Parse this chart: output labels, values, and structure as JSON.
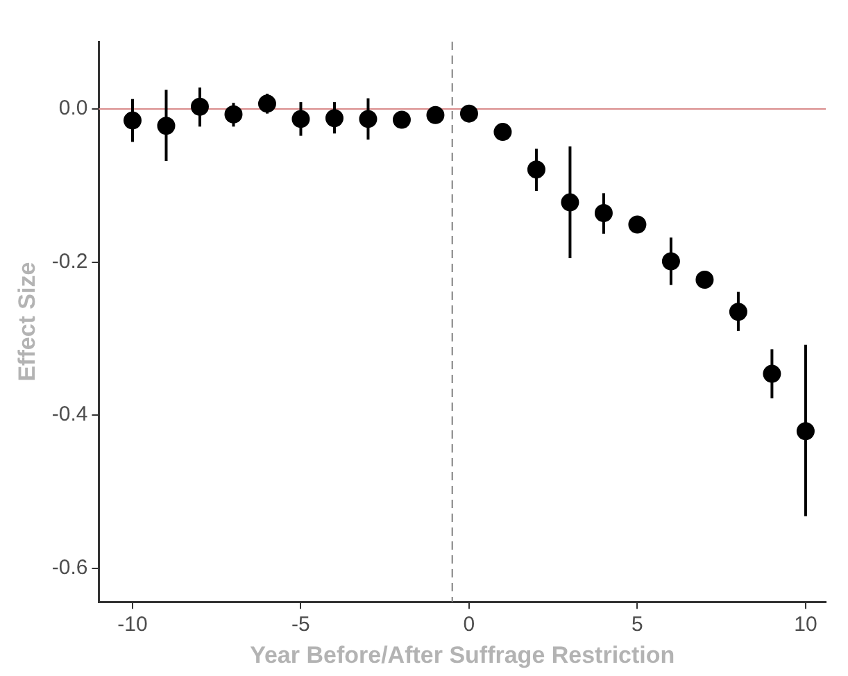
{
  "chart_data": {
    "type": "scatter",
    "xlabel": "Year Before/After Suffrage Restriction",
    "ylabel": "Effect Size",
    "x": [
      -10,
      -9,
      -8,
      -7,
      -6,
      -5,
      -4,
      -3,
      -2,
      -1,
      0,
      1,
      2,
      3,
      4,
      5,
      6,
      7,
      8,
      9,
      10
    ],
    "series": [
      {
        "color": "#000000",
        "values": [
          -0.015,
          -0.022,
          0.003,
          -0.007,
          0.007,
          -0.013,
          -0.012,
          -0.013,
          -0.014,
          -0.008,
          -0.006,
          -0.03,
          -0.079,
          -0.122,
          -0.136,
          -0.151,
          -0.199,
          -0.223,
          -0.265,
          -0.346,
          -0.421
        ],
        "errors": [
          [
            -0.043,
            0.013
          ],
          [
            -0.068,
            0.025
          ],
          [
            -0.023,
            0.028
          ],
          [
            -0.023,
            0.008
          ],
          [
            -0.006,
            0.02
          ],
          [
            -0.035,
            0.009
          ],
          [
            -0.032,
            0.009
          ],
          [
            -0.04,
            0.014
          ],
          null,
          null,
          null,
          null,
          [
            -0.107,
            -0.052
          ],
          [
            -0.195,
            -0.049
          ],
          [
            -0.163,
            -0.11
          ],
          null,
          [
            -0.23,
            -0.168
          ],
          null,
          [
            -0.29,
            -0.239
          ],
          [
            -0.378,
            -0.314
          ],
          [
            -0.532,
            -0.308
          ]
        ]
      }
    ],
    "xlim": [
      -11,
      10.6
    ],
    "xticks": [
      -10,
      -5,
      0,
      5,
      10
    ],
    "ylim": [
      -0.644,
      0.088
    ],
    "yticks": [
      {
        "value": 0,
        "label": "0.0"
      },
      {
        "value": -0.2,
        "label": "-0.2"
      },
      {
        "value": -0.4,
        "label": "-0.4"
      },
      {
        "value": -0.6,
        "label": "-0.6"
      }
    ],
    "ref_lines": [
      {
        "axis": "y",
        "value": 0,
        "color": "#d98c8c",
        "line_style": "solid"
      },
      {
        "axis": "x",
        "value": -0.5,
        "color": "#808080",
        "line_style": "dashed"
      }
    ],
    "grid": false,
    "legend": false,
    "marker": "circle"
  }
}
